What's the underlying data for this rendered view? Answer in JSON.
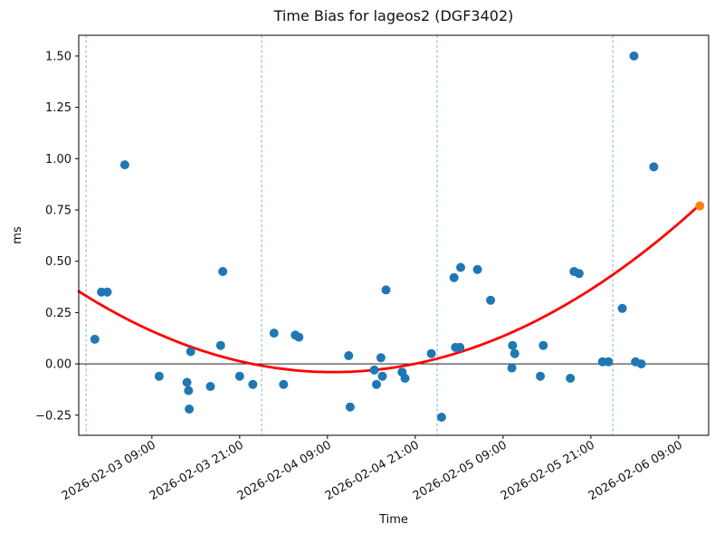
{
  "chart_data": {
    "type": "scatter",
    "title": "Time Bias for lageos2 (DGF3402)",
    "xlabel": "Time",
    "ylabel": "ms",
    "x_axis": {
      "epoch": "2026-02-03 09:00",
      "unit": "hours since epoch tick",
      "tick_labels": [
        "2026-02-03 09:00",
        "2026-02-03 21:00",
        "2026-02-04 09:00",
        "2026-02-04 21:00",
        "2026-02-05 09:00",
        "2026-02-05 21:00",
        "2026-02-06 09:00"
      ],
      "tick_hours": [
        0,
        12,
        24,
        36,
        48,
        60,
        72
      ],
      "range_hours": [
        -10.0,
        76.1
      ]
    },
    "y_axis": {
      "tick_labels": [
        "−0.25",
        "0.00",
        "0.25",
        "0.50",
        "0.75",
        "1.00",
        "1.25",
        "1.50"
      ],
      "tick_values": [
        -0.25,
        0.0,
        0.25,
        0.5,
        0.75,
        1.0,
        1.25,
        1.5
      ],
      "range_ms": [
        -0.348,
        1.601
      ]
    },
    "midnight_gridlines_hours": [
      -9,
      15,
      39,
      63
    ],
    "zero_line_ms": 0.0,
    "grid": "off",
    "legend": "none",
    "series": [
      {
        "name": "time-bias-observations",
        "color": "#1f77b4",
        "marker_radius": 5,
        "points": [
          [
            -7.8,
            0.12
          ],
          [
            -6.9,
            0.35
          ],
          [
            -6.1,
            0.35
          ],
          [
            -3.7,
            0.97
          ],
          [
            1.0,
            -0.06
          ],
          [
            4.8,
            -0.09
          ],
          [
            5.0,
            -0.13
          ],
          [
            5.1,
            -0.22
          ],
          [
            5.3,
            0.06
          ],
          [
            8.0,
            -0.11
          ],
          [
            9.4,
            0.09
          ],
          [
            9.7,
            0.45
          ],
          [
            12.0,
            -0.06
          ],
          [
            13.8,
            -0.1
          ],
          [
            16.7,
            0.15
          ],
          [
            18.0,
            -0.1
          ],
          [
            19.6,
            0.14
          ],
          [
            20.1,
            0.13
          ],
          [
            26.9,
            0.04
          ],
          [
            27.1,
            -0.21
          ],
          [
            30.4,
            -0.03
          ],
          [
            30.7,
            -0.1
          ],
          [
            31.3,
            0.03
          ],
          [
            31.5,
            -0.06
          ],
          [
            32.0,
            0.36
          ],
          [
            34.2,
            -0.04
          ],
          [
            34.6,
            -0.07
          ],
          [
            38.2,
            0.05
          ],
          [
            39.6,
            -0.26
          ],
          [
            41.3,
            0.42
          ],
          [
            41.5,
            0.08
          ],
          [
            42.1,
            0.08
          ],
          [
            42.2,
            0.47
          ],
          [
            44.5,
            0.46
          ],
          [
            46.3,
            0.31
          ],
          [
            49.2,
            -0.02
          ],
          [
            49.3,
            0.09
          ],
          [
            49.6,
            0.05
          ],
          [
            53.1,
            -0.06
          ],
          [
            53.5,
            0.09
          ],
          [
            57.2,
            -0.07
          ],
          [
            57.7,
            0.45
          ],
          [
            58.4,
            0.44
          ],
          [
            61.6,
            0.01
          ],
          [
            62.4,
            0.01
          ],
          [
            64.3,
            0.27
          ],
          [
            65.9,
            1.5
          ],
          [
            66.1,
            0.01
          ],
          [
            66.9,
            0.0
          ],
          [
            68.6,
            0.96
          ]
        ]
      },
      {
        "name": "predicted-time-bias",
        "color": "#ff7f0e",
        "marker_radius": 5,
        "points": [
          [
            74.9,
            0.77
          ]
        ]
      }
    ],
    "fit_curve": {
      "shape": "quadratic",
      "color": "#ff0000",
      "a_ms_per_h2": 0.000325,
      "vertex_hours": 24.8,
      "vertex_ms": -0.04,
      "domain_hours": [
        -10.0,
        74.9
      ]
    },
    "colors": {
      "observation_blue": "#1f77b4",
      "prediction_orange": "#ff7f0e",
      "fit_red": "#ff0000",
      "midnight_line_blue": "#7fb0d4",
      "axis_black": "#000000"
    }
  }
}
